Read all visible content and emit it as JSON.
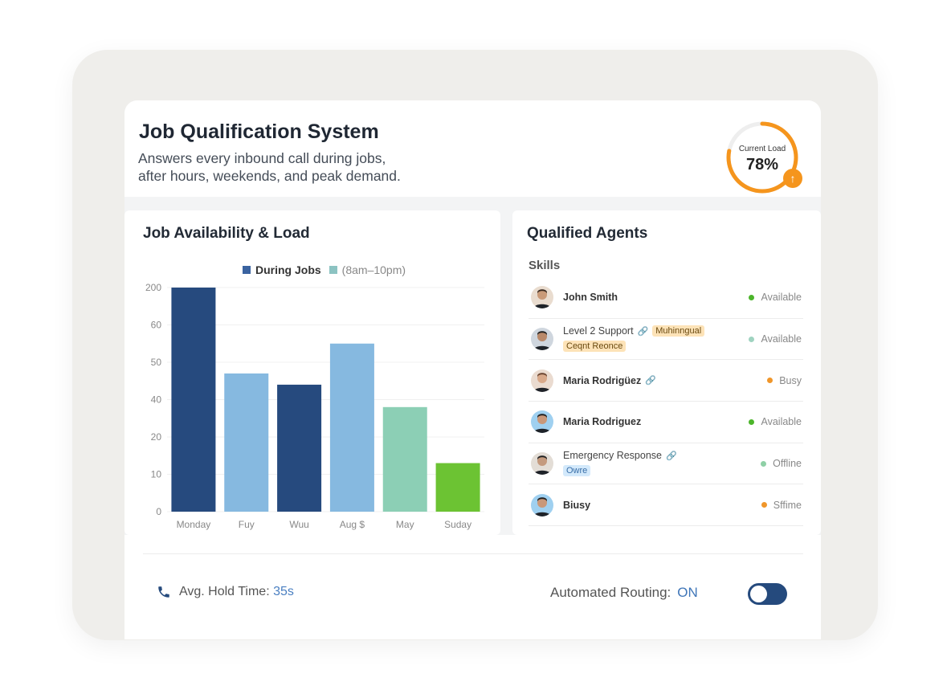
{
  "header": {
    "title": "Job Qualification System",
    "subtitle_line1": "Answers every inbound call during jobs,",
    "subtitle_line2": "after hours, weekends, and peak demand.",
    "gauge": {
      "label": "Current Load",
      "value_text": "78%",
      "value": 78,
      "color": "#f5951d",
      "badge_icon": "arrow-up-icon"
    }
  },
  "availability": {
    "title": "Job Availability & Load",
    "chart_data": {
      "type": "bar",
      "title": "",
      "legend": [
        {
          "label": "During Jobs",
          "color": "#3a63a0"
        },
        {
          "label": "(8am–10pm)",
          "color": "#8cc3c2"
        }
      ],
      "legend_placement": "top",
      "categories": [
        "Monday",
        "Fuy",
        "Wuu",
        "Aug $",
        "May",
        "Suday"
      ],
      "values": [
        200,
        47,
        44,
        55,
        36,
        13
      ],
      "colors": [
        "#264a7e",
        "#86b9e0",
        "#264a7e",
        "#86b9e0",
        "#8ccfb5",
        "#6cc333"
      ],
      "y_ticks": [
        0,
        10,
        20,
        40,
        50,
        60,
        200
      ],
      "y_tick_labels": [
        "0",
        "10",
        "20",
        "40",
        "50",
        "60",
        "200"
      ],
      "ylim": [
        0,
        200
      ],
      "grid": true,
      "xlabel": "",
      "ylabel": ""
    }
  },
  "agents": {
    "title": "Qualified Agents",
    "skills_label": "Skills",
    "items": [
      {
        "name": "John Smith",
        "status": "Available",
        "status_color": "#4cb52b",
        "tags": [],
        "link": false
      },
      {
        "name": "Level 2 Support",
        "status": "Available",
        "status_color": "#9fd3c0",
        "tags": [
          {
            "label": "Muhinngual",
            "style": "orange"
          },
          {
            "label": "Ceqnt Reonce",
            "style": "orange"
          }
        ],
        "link": true
      },
      {
        "name": "Maria Rodrigüez",
        "status": "Busy",
        "status_color": "#f0962a",
        "tags": [],
        "link": true
      },
      {
        "name": "Maria Rodriguez",
        "status": "Available",
        "status_color": "#4cb52b",
        "tags": [],
        "link": false
      },
      {
        "name": "Emergency Response",
        "status": "Offline",
        "status_color": "#8fd0a6",
        "tags": [
          {
            "label": "Owre",
            "style": "blue"
          }
        ],
        "link": true
      },
      {
        "name": "Biusy",
        "status": "Sffime",
        "status_color": "#f0962a",
        "tags": [],
        "link": false
      }
    ]
  },
  "footer": {
    "hold_label": "Avg. Hold Time:",
    "hold_value": "35s",
    "routing_label": "Automated Routing:",
    "routing_value": "ON",
    "routing_on": true
  }
}
